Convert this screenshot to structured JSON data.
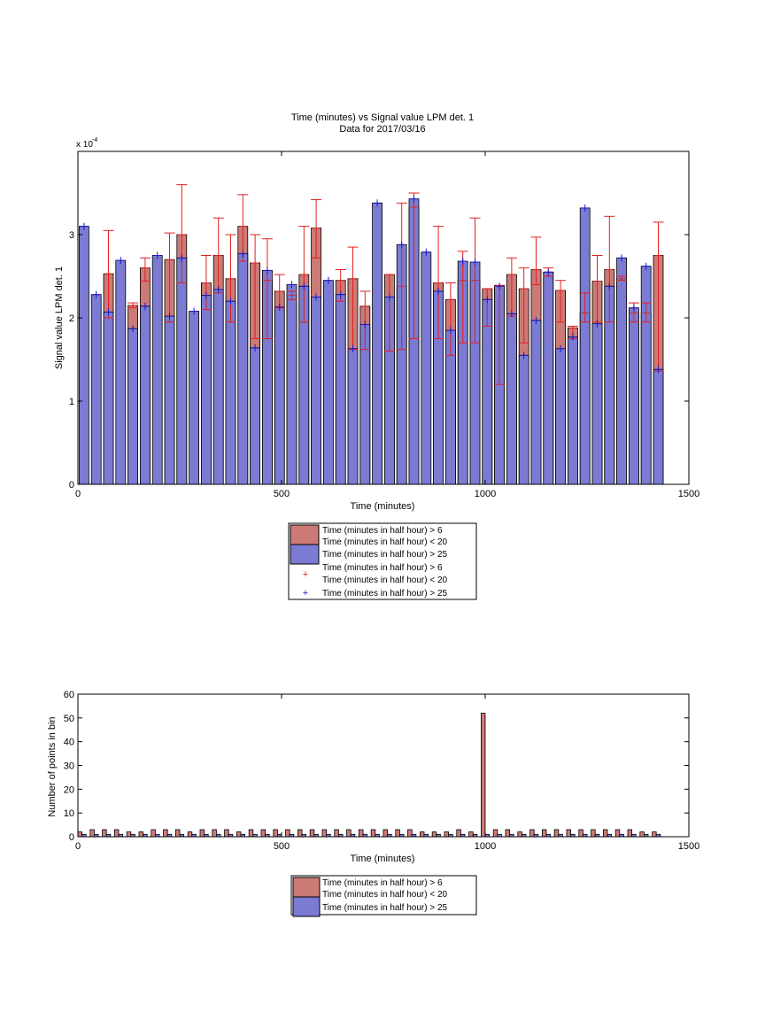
{
  "chart_data": [
    {
      "type": "bar",
      "title": "Time (minutes) vs Signal value LPM det. 1",
      "subtitle": "Data for 2017/03/16",
      "xlabel": "Time (minutes)",
      "ylabel": "Signal value LPM det. 1",
      "exponent_label": "x 10",
      "exponent_power": "-4",
      "xlim": [
        0,
        1500
      ],
      "ylim": [
        0,
        4
      ],
      "x_ticks": [
        "0",
        "500",
        "1000",
        "1500"
      ],
      "y_ticks": [
        "0",
        "1",
        "2",
        "3"
      ],
      "bar_width": 24,
      "colors": {
        "series_early": "#cc7a76",
        "series_late": "#7b7bd3",
        "error_early": "#e02020",
        "error_late": "#1818cc"
      },
      "legend": [
        "Time (minutes in half hour) > 6",
        "Time (minutes in half hour) < 20",
        "Time (minutes in half hour) > 25",
        "Time (minutes in half hour) > 6",
        "Time (minutes in half hour) < 20",
        "Time (minutes in half hour) > 25"
      ],
      "legend_position": "below",
      "series": [
        {
          "name": "Time (minutes in half hour) > 6 / < 20",
          "x": [
            75,
            135,
            165,
            225,
            255,
            315,
            345,
            375,
            405,
            435,
            465,
            495,
            525,
            555,
            585,
            645,
            675,
            705,
            765,
            795,
            825,
            885,
            915,
            945,
            975,
            1005,
            1035,
            1065,
            1095,
            1125,
            1155,
            1185,
            1215,
            1245,
            1275,
            1305,
            1335,
            1365,
            1395,
            1425
          ],
          "values": [
            2.53,
            2.15,
            2.6,
            2.7,
            3.0,
            2.42,
            2.75,
            2.47,
            3.1,
            2.66,
            2.45,
            2.32,
            2.27,
            2.52,
            3.08,
            2.45,
            2.47,
            2.14,
            2.52,
            2.38,
            3.33,
            2.42,
            2.22,
            2.45,
            2.45,
            2.35,
            2.39,
            2.52,
            2.35,
            2.58,
            2.55,
            2.33,
            1.88,
            2.06,
            2.44,
            2.58,
            2.47,
            2.06,
            2.06,
            2.75
          ],
          "error_low": [
            2.0,
            2.12,
            2.44,
            1.95,
            2.42,
            2.1,
            2.3,
            1.95,
            2.68,
            1.75,
            1.75,
            2.12,
            2.22,
            1.95,
            2.72,
            2.2,
            1.62,
            1.62,
            1.6,
            1.62,
            1.75,
            1.75,
            1.55,
            1.7,
            1.7,
            1.9,
            1.2,
            2.02,
            1.7,
            2.4,
            2.5,
            1.95,
            1.75,
            1.95,
            1.95,
            1.95,
            2.45,
            1.95,
            1.95,
            1.36
          ],
          "error_high": [
            3.05,
            2.18,
            2.72,
            3.02,
            3.6,
            2.75,
            3.2,
            3.0,
            3.48,
            3.0,
            2.95,
            2.52,
            2.32,
            3.1,
            3.42,
            2.58,
            2.85,
            2.32,
            2.52,
            3.38,
            3.5,
            3.1,
            2.42,
            2.8,
            3.2,
            2.35,
            2.38,
            2.72,
            2.6,
            2.97,
            2.6,
            2.45,
            1.9,
            2.3,
            2.75,
            3.22,
            2.5,
            2.18,
            2.18,
            3.15
          ]
        },
        {
          "name": "Time (minutes in half hour) > 25",
          "x": [
            15,
            45,
            75,
            105,
            135,
            165,
            195,
            225,
            255,
            285,
            315,
            345,
            375,
            405,
            435,
            465,
            495,
            525,
            555,
            585,
            615,
            645,
            675,
            705,
            735,
            765,
            795,
            825,
            855,
            885,
            915,
            945,
            975,
            1005,
            1035,
            1065,
            1095,
            1125,
            1155,
            1185,
            1215,
            1245,
            1275,
            1305,
            1335,
            1365,
            1395,
            1425
          ],
          "values": [
            3.1,
            2.28,
            2.07,
            2.69,
            1.87,
            2.14,
            2.75,
            2.02,
            2.72,
            2.08,
            2.27,
            2.34,
            2.2,
            2.77,
            1.64,
            2.57,
            2.13,
            2.4,
            2.38,
            2.25,
            2.45,
            2.28,
            1.63,
            1.92,
            3.38,
            2.25,
            2.88,
            3.43,
            2.79,
            2.32,
            1.85,
            2.68,
            2.67,
            2.22,
            2.38,
            2.05,
            1.55,
            1.97,
            2.55,
            1.63,
            1.77,
            3.32,
            1.93,
            2.38,
            2.72,
            2.12,
            2.62,
            1.38
          ]
        }
      ]
    },
    {
      "type": "bar",
      "xlabel": "Time (minutes)",
      "ylabel": "Number of points in bin",
      "xlim": [
        0,
        1500
      ],
      "ylim": [
        0,
        60
      ],
      "x_ticks": [
        "0",
        "500",
        "1000",
        "1500"
      ],
      "y_ticks": [
        "0",
        "10",
        "20",
        "30",
        "40",
        "50",
        "60"
      ],
      "legend": [
        "Time (minutes in half hour) > 6",
        "Time (minutes in half hour) < 20",
        "Time (minutes in half hour) > 25"
      ],
      "legend_position": "below",
      "series": [
        {
          "name": "Time (minutes in half hour) > 6 / < 20",
          "x": [
            5,
            35,
            65,
            95,
            125,
            155,
            185,
            215,
            245,
            275,
            305,
            335,
            365,
            395,
            425,
            455,
            485,
            515,
            545,
            575,
            605,
            635,
            665,
            695,
            725,
            755,
            785,
            815,
            845,
            875,
            905,
            935,
            965,
            995,
            1025,
            1055,
            1085,
            1115,
            1145,
            1175,
            1205,
            1235,
            1265,
            1295,
            1325,
            1355,
            1385,
            1415
          ],
          "values": [
            2,
            3,
            3,
            3,
            2,
            2,
            3,
            3,
            3,
            2,
            3,
            3,
            3,
            2,
            3,
            3,
            3,
            3,
            3,
            3,
            3,
            3,
            3,
            3,
            3,
            3,
            3,
            3,
            2,
            2,
            2,
            3,
            2,
            52,
            3,
            3,
            2,
            3,
            3,
            3,
            3,
            3,
            3,
            3,
            3,
            3,
            2,
            2
          ]
        },
        {
          "name": "Time (minutes in half hour) > 25",
          "x": [
            15,
            45,
            75,
            105,
            135,
            165,
            195,
            225,
            255,
            285,
            315,
            345,
            375,
            405,
            435,
            465,
            495,
            525,
            555,
            585,
            615,
            645,
            675,
            705,
            735,
            765,
            795,
            825,
            855,
            885,
            915,
            945,
            975,
            1005,
            1035,
            1065,
            1095,
            1125,
            1155,
            1185,
            1215,
            1245,
            1275,
            1305,
            1335,
            1365,
            1395,
            1425
          ],
          "values": [
            1,
            1,
            1,
            1,
            1,
            1,
            1,
            1,
            1,
            1,
            1,
            1,
            1,
            1,
            1,
            1,
            1,
            1,
            1,
            1,
            1,
            1,
            1,
            1,
            1,
            1,
            1,
            1,
            1,
            1,
            1,
            1,
            1,
            1,
            1,
            1,
            1,
            1,
            1,
            1,
            1,
            1,
            1,
            1,
            1,
            1,
            1,
            1
          ]
        }
      ]
    }
  ]
}
